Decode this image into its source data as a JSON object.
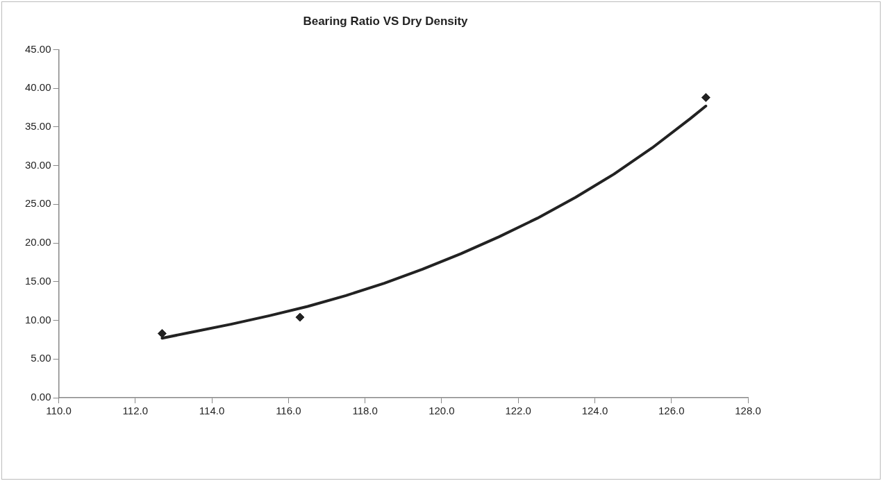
{
  "chart_data": {
    "type": "scatter",
    "title": "Bearing Ratio VS Dry Density",
    "grid": false,
    "legend": false,
    "xlim": [
      110,
      128
    ],
    "xticks": [
      {
        "value": 110,
        "label": "110.0"
      },
      {
        "value": 112,
        "label": "112.0"
      },
      {
        "value": 114,
        "label": "114.0"
      },
      {
        "value": 116,
        "label": "116.0"
      },
      {
        "value": 118,
        "label": "118.0"
      },
      {
        "value": 120,
        "label": "120.0"
      },
      {
        "value": 122,
        "label": "122.0"
      },
      {
        "value": 124,
        "label": "124.0"
      },
      {
        "value": 126,
        "label": "126.0"
      },
      {
        "value": 128,
        "label": "128.0"
      }
    ],
    "ylim": [
      0,
      45
    ],
    "yticks": [
      {
        "value": 0,
        "label": "0.00"
      },
      {
        "value": 5,
        "label": "5.00"
      },
      {
        "value": 10,
        "label": "10.00"
      },
      {
        "value": 15,
        "label": "15.00"
      },
      {
        "value": 20,
        "label": "20.00"
      },
      {
        "value": 25,
        "label": "25.00"
      },
      {
        "value": 30,
        "label": "30.00"
      },
      {
        "value": 35,
        "label": "35.00"
      },
      {
        "value": 40,
        "label": "40.00"
      },
      {
        "value": 45,
        "label": "45.00"
      }
    ],
    "series": [
      {
        "type": "scatter",
        "color": "#222222",
        "marker": "diamond",
        "x": [
          112.7,
          116.3,
          126.9
        ],
        "values": [
          8.3,
          10.4,
          38.8
        ]
      },
      {
        "type": "line",
        "color": "#222222",
        "marker": "none",
        "x": [
          112.7,
          113.5,
          114.5,
          115.5,
          116.5,
          117.5,
          118.5,
          119.5,
          120.5,
          121.5,
          122.5,
          123.5,
          124.5,
          125.5,
          126.5,
          126.9
        ],
        "values": [
          7.7,
          8.5,
          9.5,
          10.6,
          11.8,
          13.2,
          14.8,
          16.6,
          18.6,
          20.8,
          23.2,
          25.9,
          28.9,
          32.3,
          36.1,
          37.7
        ]
      }
    ]
  }
}
